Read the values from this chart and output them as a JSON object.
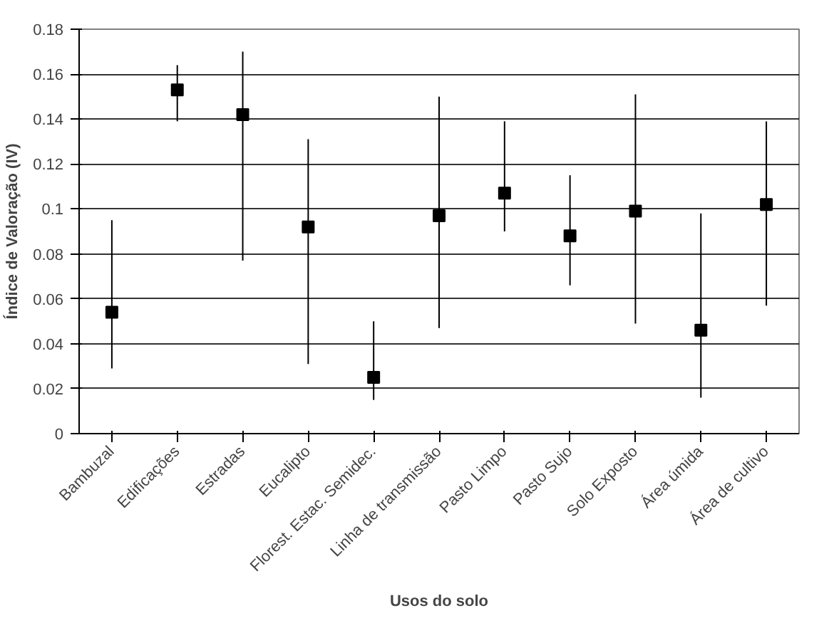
{
  "chart_data": {
    "type": "scatter",
    "xlabel": "Usos do solo",
    "ylabel": "Índice de Valoração (IV)",
    "categories": [
      "Bambuzal",
      "Edificações",
      "Estradas",
      "Eucalipto",
      "Florest. Estac. Semidec.",
      "Linha de transmissão",
      "Pasto Limpo",
      "Pasto Sujo",
      "Solo Exposto",
      "Área úmida",
      "Área de cultivo"
    ],
    "values": [
      0.054,
      0.153,
      0.142,
      0.092,
      0.025,
      0.097,
      0.107,
      0.088,
      0.099,
      0.046,
      0.102
    ],
    "errors": [
      [
        0.029,
        0.095
      ],
      [
        0.139,
        0.164
      ],
      [
        0.077,
        0.17
      ],
      [
        0.031,
        0.131
      ],
      [
        0.015,
        0.05
      ],
      [
        0.047,
        0.15
      ],
      [
        0.09,
        0.139
      ],
      [
        0.066,
        0.115
      ],
      [
        0.049,
        0.151
      ],
      [
        0.016,
        0.098
      ],
      [
        0.057,
        0.139
      ]
    ],
    "color": "#000000",
    "ylim": [
      0,
      0.18
    ],
    "yticks": [
      0,
      0.02,
      0.04,
      0.06,
      0.08,
      0.1,
      0.12,
      0.14,
      0.16,
      0.18
    ],
    "grid": "y",
    "marker": "square"
  }
}
